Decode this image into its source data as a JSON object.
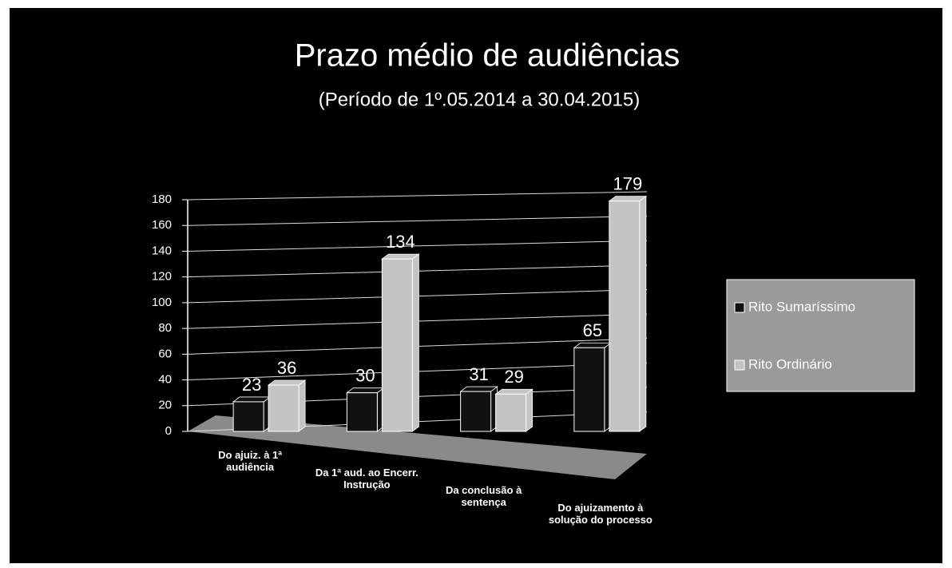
{
  "chart_data": {
    "type": "bar",
    "title": "Prazo médio de audiências",
    "subtitle": "(Período de 1º.05.2014  a  30.04.2015)",
    "categories": [
      "Do ajuiz. à 1ª audiência",
      "Da 1ª aud. ao Encerr. Instrução",
      "Da conclusão à sentença",
      "Do ajuizamento à solução do processo"
    ],
    "series": [
      {
        "name": "Rito Sumaríssimo",
        "color": "#111111",
        "values": [
          23,
          30,
          31,
          65
        ]
      },
      {
        "name": "Rito Ordinário",
        "color": "#c4c4c4",
        "values": [
          36,
          134,
          29,
          179
        ]
      }
    ],
    "ylim": [
      0,
      180
    ],
    "yticks": [
      0,
      20,
      40,
      60,
      80,
      100,
      120,
      140,
      160,
      180
    ],
    "grid": true,
    "legend": "right"
  }
}
